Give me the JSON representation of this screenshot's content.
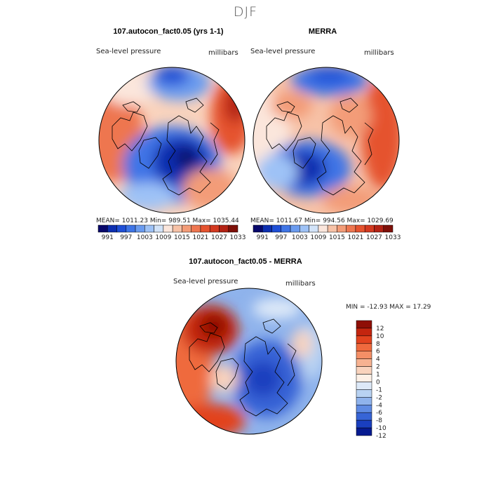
{
  "figure": {
    "title": "DJF",
    "panels": [
      {
        "title": "107.autocon_fact0.05 (yrs 1-1)",
        "variable": "Sea-level pressure",
        "units": "millibars",
        "stats": {
          "mean": "1011.23",
          "min": "989.51",
          "max": "1035.44"
        },
        "stats_text": "MEAN= 1011.23   Min= 989.51   Max= 1035.44"
      },
      {
        "title": "MERRA",
        "variable": "Sea-level pressure",
        "units": "millibars",
        "stats": {
          "mean": "1011.67",
          "min": "994.56",
          "max": "1029.69"
        },
        "stats_text": "MEAN= 1011.67   Min= 994.56   Max= 1029.69"
      },
      {
        "title": "107.autocon_fact0.05 - MERRA",
        "variable": "Sea-level pressure",
        "units": "millibars",
        "stats": {
          "min": "-12.93",
          "max": "17.29"
        },
        "stats_text": "MIN = -12.93 MAX =  17.29"
      }
    ],
    "colorbar_abs": {
      "labels": [
        "991",
        "997",
        "1003",
        "1009",
        "1015",
        "1021",
        "1027",
        "1033"
      ],
      "colors": [
        "#08086b",
        "#0d2fb0",
        "#1f4fd6",
        "#3f75e6",
        "#6a9bef",
        "#9ec2f6",
        "#d2e3f8",
        "#fbe6dc",
        "#f7c2a7",
        "#f39c78",
        "#ee7650",
        "#e5532f",
        "#d33920",
        "#b32214",
        "#7d0f08"
      ]
    },
    "colorbar_diff": {
      "labels": [
        "12",
        "10",
        "8",
        "6",
        "4",
        "2",
        "1",
        "0",
        "-1",
        "-2",
        "-4",
        "-6",
        "-8",
        "-10",
        "-12"
      ],
      "colors": [
        "#8f0f06",
        "#c4250f",
        "#e2431f",
        "#ef6a3e",
        "#f48f66",
        "#f7b291",
        "#f9d3bd",
        "#fdf0e6",
        "#dde9f8",
        "#b8d2f2",
        "#8fb3ec",
        "#5f8be3",
        "#3764d6",
        "#1a3fbf",
        "#061a90"
      ]
    }
  }
}
